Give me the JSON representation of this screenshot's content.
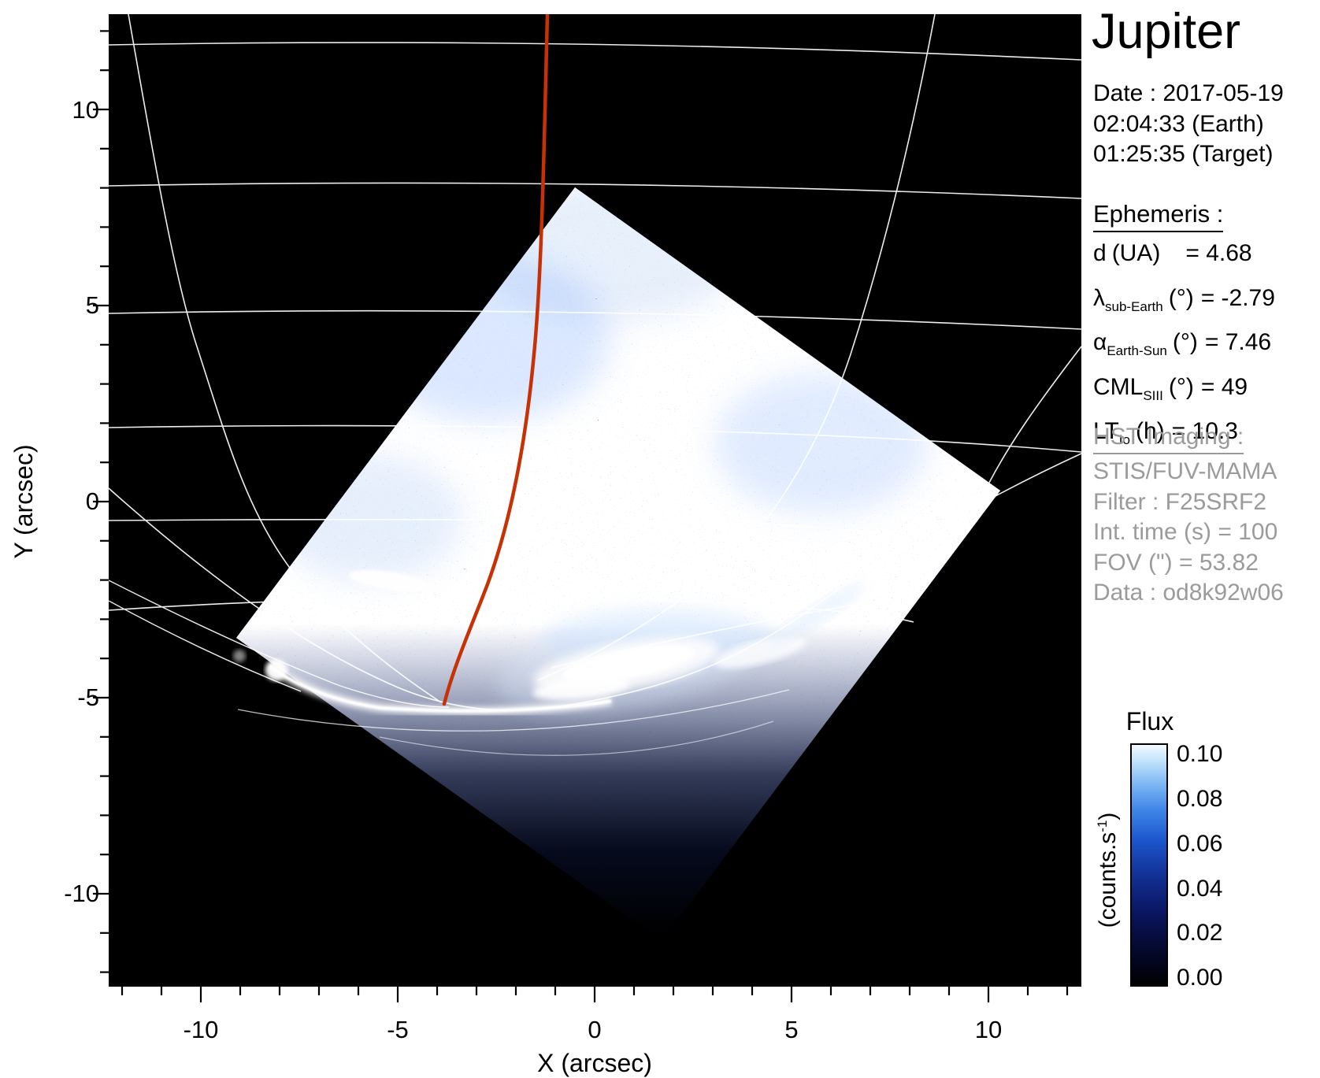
{
  "title": "Jupiter",
  "colors": {
    "red_line": "#c63205",
    "graticule": "#ffffff",
    "plot_bg": "#000000",
    "hst_gray": "#9b9b9b"
  },
  "observation": {
    "date": "Date : 2017-05-19",
    "time_earth": "02:04:33 (Earth)",
    "time_target": "01:25:35 (Target)"
  },
  "ephemeris": {
    "heading": "Ephemeris :",
    "rows": [
      {
        "sym": "d",
        "sub": "",
        "unit": "(UA)",
        "value": "= 4.68"
      },
      {
        "sym": "λ",
        "sub": "sub-Earth",
        "unit": "(°)",
        "value": "= -2.79"
      },
      {
        "sym": "α",
        "sub": "Earth-Sun",
        "unit": "(°)",
        "value": "= 7.46"
      },
      {
        "sym": "CML",
        "sub": "SIII",
        "unit": "(°)",
        "value": "= 49"
      },
      {
        "sym": "LT",
        "sub": "Io",
        "unit": "(h)",
        "value": "= 10.3"
      }
    ]
  },
  "hst": {
    "heading": "HST Imaging :",
    "lines": [
      "STIS/FUV-MAMA",
      "Filter : F25SRF2",
      "Int. time (s) = 100",
      "FOV (\") = 53.82",
      "Data : od8k92w06"
    ]
  },
  "colorbar": {
    "title": "Flux",
    "unit_prefix": "(counts.s",
    "unit_exp": "-1",
    "unit_suffix": ")",
    "tick_labels": [
      "0.10",
      "0.08",
      "0.06",
      "0.04",
      "0.02",
      "0.00"
    ]
  },
  "axes": {
    "x_label": "X (arcsec)",
    "y_label": "Y (arcsec)",
    "x_tick_labels": [
      "-10",
      "-5",
      "0",
      "5",
      "10"
    ],
    "y_tick_labels": [
      "10",
      "5",
      "0",
      "-5",
      "-10"
    ]
  },
  "chart_data": {
    "type": "heatmap",
    "title": "Jupiter",
    "xlabel": "X (arcsec)",
    "ylabel": "Y (arcsec)",
    "xlim": [
      -12.4,
      12.4
    ],
    "ylim": [
      -12.4,
      12.4
    ],
    "x_ticks": [
      -10,
      -5,
      0,
      5,
      10
    ],
    "y_ticks": [
      10,
      5,
      0,
      -5,
      -10
    ],
    "grid": "planetary graticule (white curves), no cartesian grid",
    "colorbar": {
      "label": "Flux",
      "units": "counts.s^-1",
      "range": [
        0.0,
        0.1
      ],
      "ticks": [
        0.1,
        0.08,
        0.06,
        0.04,
        0.02,
        0.0
      ],
      "colormap": "black → dark navy → blue → light blue → white"
    },
    "ephemeris_values": {
      "d_UA": 4.68,
      "lambda_sub_earth_deg": -2.79,
      "alpha_earth_sun_deg": 7.46,
      "CML_SIII_deg": 49,
      "LT_Io_h": 10.3
    },
    "observation": {
      "target": "Jupiter",
      "date": "2017-05-19",
      "time_earth": "02:04:33",
      "time_target": "01:25:35",
      "instrument": "STIS/FUV-MAMA",
      "filter": "F25SRF2",
      "integration_time_s": 100,
      "fov_arcsec": 53.82,
      "dataset": "od8k92w06"
    },
    "features": [
      {
        "name": "detector-fov",
        "desc": "rotated-square STIS field of view filled with speckled blue count noise, brightest in its upper half, fading to black at bottom",
        "corners_arcsec": [
          [
            -0.5,
            8.0
          ],
          [
            10.4,
            0.3
          ],
          [
            1.7,
            -11.2
          ],
          [
            -9.1,
            -3.5
          ]
        ]
      },
      {
        "name": "southern-auroral-oval",
        "desc": "saturated white FUV auroral arcs: main bright blob near (0.8, -4.2), thin bright limb arc from (-8, -4) to (-2, -5.3), detached dash near (-5.2, -2.0)"
      },
      {
        "name": "central-meridian-line",
        "desc": "red curve from top of frame at x≈-1.2 curving down-left to the south pole near (-3.8, -5.0)",
        "color": "#c63205"
      },
      {
        "name": "planet-graticule",
        "desc": "white latitude/longitude model grid and planetary limb converging toward the south pole near the bottom auroral arc"
      }
    ]
  }
}
